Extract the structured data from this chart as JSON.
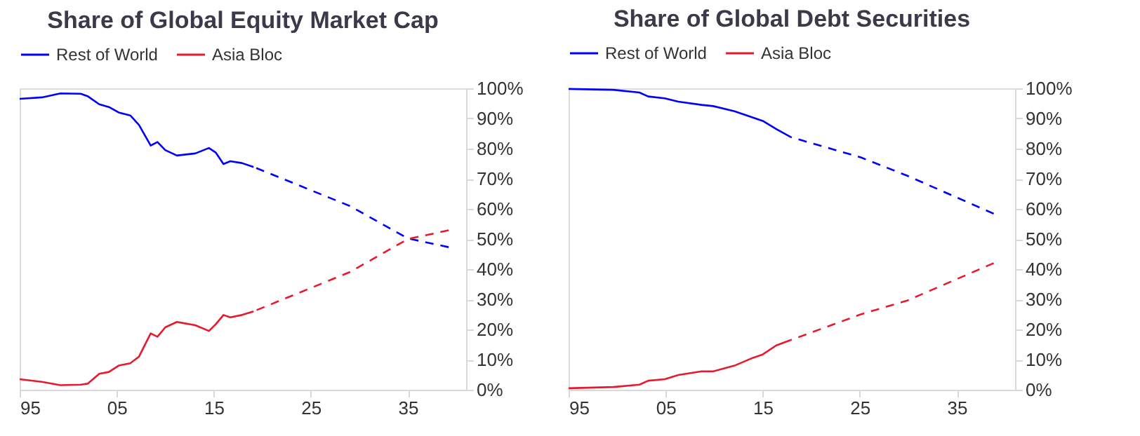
{
  "chart_data": [
    {
      "type": "line",
      "title": "Share of Global Equity Market Cap",
      "legend": "top",
      "xlim": [
        1995,
        2041
      ],
      "ylim": [
        0,
        100
      ],
      "xticks": [
        {
          "value": 1995,
          "label": "95"
        },
        {
          "value": 2005,
          "label": "05"
        },
        {
          "value": 2015,
          "label": "15"
        },
        {
          "value": 2025,
          "label": "25"
        },
        {
          "value": 2035,
          "label": "35"
        }
      ],
      "yticks": [
        {
          "value": 0,
          "label": "0%"
        },
        {
          "value": 10,
          "label": "10%"
        },
        {
          "value": 20,
          "label": "20%"
        },
        {
          "value": 30,
          "label": "30%"
        },
        {
          "value": 40,
          "label": "40%"
        },
        {
          "value": 50,
          "label": "50%"
        },
        {
          "value": 60,
          "label": "60%"
        },
        {
          "value": 70,
          "label": "70%"
        },
        {
          "value": 80,
          "label": "80%"
        },
        {
          "value": 90,
          "label": "90%"
        },
        {
          "value": 100,
          "label": "100%"
        }
      ],
      "series": [
        {
          "name": "Rest of World",
          "color": "#0000ff",
          "line_style": "solid",
          "x": [
            1995,
            1997.3,
            1999.2,
            2001.3,
            2002,
            2003.2,
            2004.2,
            2005.2,
            2006.4,
            2007.3,
            2008.5,
            2009.2,
            2010,
            2011.2,
            2013.1,
            2014.5,
            2015.2,
            2016,
            2016.7,
            2017.9,
            2019.1
          ],
          "values": [
            96.5,
            97,
            98.3,
            98.2,
            97.4,
            94.7,
            93.8,
            92,
            91,
            87.8,
            81,
            82.2,
            79.5,
            77.7,
            78.4,
            80.2,
            78.7,
            74.9,
            75.8,
            75.2,
            73.9
          ]
        },
        {
          "name": "Asia Bloc",
          "color": "#e8192c",
          "line_style": "solid",
          "x": [
            1995,
            1997.3,
            1999.2,
            2001.3,
            2002,
            2003.2,
            2004.2,
            2005.2,
            2006.4,
            2007.3,
            2008.5,
            2009.2,
            2010,
            2011.2,
            2013.1,
            2014.5,
            2015.2,
            2016,
            2016.7,
            2017.9,
            2019.1
          ],
          "values": [
            3.5,
            2.6,
            1.5,
            1.7,
            2,
            5.3,
            5.9,
            8,
            8.8,
            11,
            18.7,
            17.6,
            20.7,
            22.5,
            21.4,
            19.5,
            21.7,
            24.8,
            24,
            24.8,
            26
          ]
        },
        {
          "color": "#0000ff",
          "line_style": "dashed",
          "x": [
            2019.1,
            2029,
            2035,
            2039.2
          ],
          "values": [
            73.9,
            61,
            50.2,
            47.3
          ]
        },
        {
          "color": "#e8192c",
          "line_style": "dashed",
          "x": [
            2019.1,
            2029,
            2035,
            2039.2
          ],
          "values": [
            26,
            39,
            50,
            52.9
          ]
        }
      ]
    },
    {
      "type": "line",
      "title": "Share of Global Debt Securities",
      "legend": "top",
      "xlim": [
        1995,
        2041
      ],
      "ylim": [
        0,
        100
      ],
      "xticks": [
        {
          "value": 1995,
          "label": "95"
        },
        {
          "value": 2005,
          "label": "05"
        },
        {
          "value": 2015,
          "label": "15"
        },
        {
          "value": 2025,
          "label": "25"
        },
        {
          "value": 2035,
          "label": "35"
        }
      ],
      "yticks": [
        {
          "value": 0,
          "label": "0%"
        },
        {
          "value": 10,
          "label": "10%"
        },
        {
          "value": 20,
          "label": "20%"
        },
        {
          "value": 30,
          "label": "30%"
        },
        {
          "value": 40,
          "label": "40%"
        },
        {
          "value": 50,
          "label": "50%"
        },
        {
          "value": 60,
          "label": "60%"
        },
        {
          "value": 70,
          "label": "70%"
        },
        {
          "value": 80,
          "label": "80%"
        },
        {
          "value": 90,
          "label": "90%"
        },
        {
          "value": 100,
          "label": "100%"
        }
      ],
      "series": [
        {
          "name": "Rest of World",
          "color": "#0000ff",
          "line_style": "solid",
          "x": [
            1995,
            1999.6,
            2002.3,
            2003.2,
            2004.9,
            2006.3,
            2008.7,
            2009.9,
            2012.1,
            2014,
            2015,
            2016.4,
            2017.9
          ],
          "values": [
            99.8,
            99.5,
            98.6,
            97.3,
            96.7,
            95.6,
            94.5,
            94.1,
            92.4,
            90.3,
            89.2,
            86.5,
            83.8
          ]
        },
        {
          "name": "Asia Bloc",
          "color": "#e8192c",
          "line_style": "solid",
          "x": [
            1995,
            1999.6,
            2002.3,
            2003.2,
            2004.9,
            2006.3,
            2008.7,
            2009.9,
            2012.1,
            2014,
            2015,
            2016.4,
            2017.9
          ],
          "values": [
            0.5,
            0.9,
            1.7,
            3,
            3.5,
            4.9,
            6.1,
            6.1,
            8,
            10.6,
            11.7,
            14.7,
            16.5
          ]
        },
        {
          "color": "#0000ff",
          "line_style": "dashed",
          "x": [
            2017.9,
            2025.1,
            2029.9,
            2038.8
          ],
          "values": [
            83.8,
            77.1,
            71,
            58.4
          ]
        },
        {
          "color": "#e8192c",
          "line_style": "dashed",
          "x": [
            2017.9,
            2025.1,
            2029.9,
            2038.8
          ],
          "values": [
            16.5,
            25,
            29.6,
            42
          ]
        }
      ]
    }
  ]
}
